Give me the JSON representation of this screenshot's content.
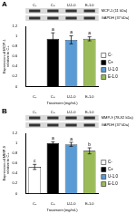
{
  "chart_data": [
    {
      "type": "bar",
      "title": "A",
      "blot_labels": [
        "MCP-1 (11 kDa)",
        "GAPDH (37 kDa)"
      ],
      "categories": [
        "C-",
        "C+",
        "U-1.0",
        "E-1.0"
      ],
      "values": [
        0,
        0.95,
        0.93,
        0.95
      ],
      "errors": [
        null,
        0.12,
        0.08,
        0.04
      ],
      "letters": [
        null,
        "a",
        "a",
        "a"
      ],
      "colors": [
        "#ffffff",
        "#000000",
        "#5b9bd5",
        "#9bbb59"
      ],
      "x_label": "Treatment (mg/mL)",
      "y_label": [
        "Expression of MCP-1",
        "relative to C+"
      ],
      "ylim": [
        0,
        1.2
      ],
      "yticks": [
        0,
        0.2,
        0.4,
        0.6,
        0.8,
        1,
        1.2
      ],
      "grid": false,
      "legend": "right"
    },
    {
      "type": "bar",
      "title": "B",
      "blot_labels": [
        "MMP-9 (78-92 kDa)",
        "GAPDH (37 kDa)"
      ],
      "categories": [
        "C-",
        "C+",
        "U-1.0",
        "E-1.0"
      ],
      "values": [
        0.53,
        1.0,
        0.98,
        0.85
      ],
      "errors": [
        0.05,
        0.03,
        0.04,
        0.06
      ],
      "letters": [
        "c",
        "a",
        "a",
        "b"
      ],
      "colors": [
        "#ffffff",
        "#000000",
        "#5b9bd5",
        "#9bbb59"
      ],
      "x_label": "Treatment (mg/mL)",
      "y_label": [
        "Expression of MMP-9",
        "relative to C+"
      ],
      "ylim": [
        0,
        1.2
      ],
      "yticks": [
        0,
        0.2,
        0.4,
        0.6,
        0.8,
        1,
        1.2
      ],
      "grid": false,
      "legend": "right"
    }
  ]
}
